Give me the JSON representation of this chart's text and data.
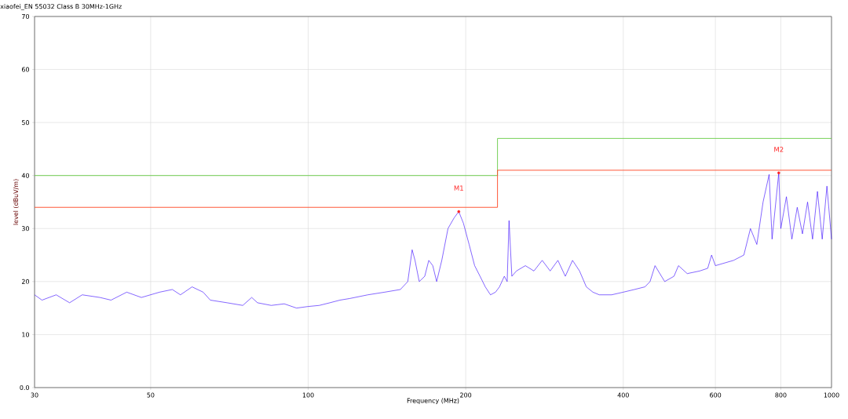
{
  "chart_data": {
    "type": "line",
    "title": "xiaofei_EN 55032 Class B 30MHz-1GHz",
    "xlabel": "Frequency (MHz)",
    "ylabel": "level (dBuV/m)",
    "log": "x",
    "xlim": [
      30,
      1000
    ],
    "ylim": [
      0,
      70
    ],
    "xticks": [
      30,
      50,
      100,
      200,
      400,
      600,
      800,
      1000
    ],
    "yticks": [
      {
        "value": 0,
        "label": "0.0"
      },
      10,
      20,
      30,
      40,
      50,
      60,
      70
    ],
    "grid": true,
    "series": [
      {
        "type": "step",
        "color": "#66cc44",
        "x": [
          30,
          230,
          1000
        ],
        "values": [
          40,
          47,
          47
        ]
      },
      {
        "type": "step",
        "color": "#ff4422",
        "x": [
          30,
          230,
          1000
        ],
        "values": [
          34,
          41,
          41
        ]
      },
      {
        "color": "#3300ff",
        "x": [
          30,
          31,
          33,
          35,
          37,
          40,
          42,
          45,
          48,
          52,
          55,
          57,
          60,
          63,
          65,
          70,
          75,
          78,
          80,
          85,
          90,
          95,
          100,
          105,
          110,
          115,
          120,
          130,
          140,
          150,
          155,
          158,
          160,
          163,
          167,
          170,
          173,
          176,
          180,
          185,
          190,
          194,
          198,
          203,
          208,
          213,
          218,
          223,
          228,
          232,
          237,
          240,
          242,
          245,
          250,
          260,
          270,
          280,
          290,
          300,
          310,
          320,
          330,
          340,
          350,
          360,
          380,
          400,
          420,
          440,
          450,
          460,
          480,
          500,
          510,
          530,
          560,
          580,
          590,
          600,
          650,
          680,
          700,
          720,
          740,
          760,
          770,
          793,
          800,
          820,
          840,
          860,
          880,
          900,
          920,
          940,
          960,
          980,
          1000
        ],
        "values": [
          17.5,
          16.5,
          17.5,
          16,
          17.5,
          17,
          16.5,
          18,
          17,
          18,
          18.5,
          17.5,
          19,
          18,
          16.5,
          16,
          15.5,
          17,
          16,
          15.5,
          15.8,
          15,
          15.3,
          15.5,
          16,
          16.5,
          16.8,
          17.5,
          18,
          18.5,
          20,
          26,
          24,
          20,
          21,
          24,
          23,
          20,
          24,
          30,
          32,
          33.2,
          31,
          27,
          23,
          21,
          19,
          17.5,
          18,
          19,
          21,
          20,
          31.5,
          21,
          22,
          23,
          22,
          24,
          22,
          24,
          21,
          24,
          22,
          19,
          18,
          17.5,
          17.5,
          18,
          18.5,
          19,
          20,
          23,
          20,
          21,
          23,
          21.5,
          22,
          22.5,
          25,
          23,
          24,
          25,
          30,
          27,
          35,
          40.2,
          28,
          40.5,
          30,
          36,
          28,
          34,
          29,
          35,
          28,
          37,
          28,
          38,
          28
        ]
      },
      {
        "type": "scatter",
        "color": "#ff2020",
        "marker": "circle",
        "x": [
          194,
          793
        ],
        "values": [
          33.2,
          40.5
        ]
      }
    ],
    "annotations": [
      "M1",
      "M2"
    ]
  }
}
